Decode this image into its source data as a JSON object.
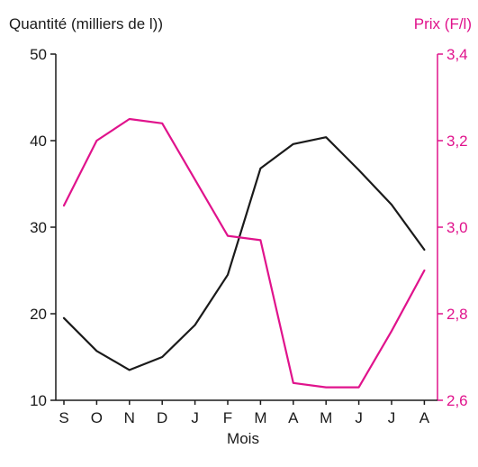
{
  "chart_data": {
    "type": "line",
    "xlabel": "Mois",
    "categories": [
      "S",
      "O",
      "N",
      "D",
      "J",
      "F",
      "M",
      "A",
      "M",
      "J",
      "J",
      "A"
    ],
    "left_axis": {
      "label": "Quantité (milliers de l))",
      "ylim": [
        10,
        50
      ],
      "ticks": [
        10,
        20,
        30,
        40,
        50
      ],
      "tick_labels": [
        "10",
        "20",
        "30",
        "40",
        "50"
      ],
      "color": "#1a1a1a"
    },
    "right_axis": {
      "label": "Prix (F/l)",
      "ylim": [
        2.6,
        3.4
      ],
      "ticks": [
        2.6,
        2.8,
        3.0,
        3.2,
        3.4
      ],
      "tick_labels": [
        "2,6",
        "2,8",
        "3,0",
        "3,2",
        "3,4"
      ],
      "color": "#e0138c"
    },
    "series": [
      {
        "axis": "left",
        "color": "#1a1a1a",
        "values": [
          19.5,
          15.7,
          13.5,
          15.0,
          18.7,
          24.5,
          36.8,
          39.6,
          40.4,
          36.6,
          32.6,
          27.4
        ]
      },
      {
        "axis": "right",
        "color": "#e0138c",
        "values": [
          3.05,
          3.2,
          3.25,
          3.24,
          3.11,
          2.98,
          2.97,
          2.64,
          2.63,
          2.63,
          2.76,
          2.9
        ]
      }
    ],
    "grid": false,
    "legend": "none"
  }
}
